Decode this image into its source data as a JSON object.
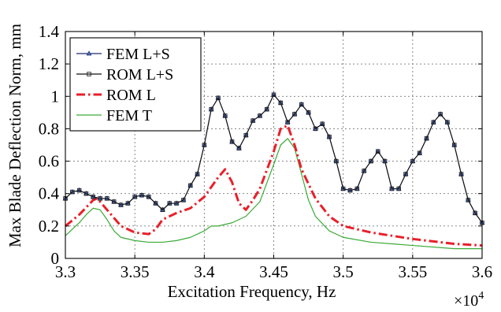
{
  "chart_data": {
    "type": "line",
    "xlabel": "Excitation Frequency, Hz",
    "ylabel": "Max Blade Deflection Norm, mm",
    "x_exponent_label": "×10",
    "x_exponent_power": "4",
    "xlim": [
      3.3,
      3.6
    ],
    "ylim": [
      0,
      1.4
    ],
    "x_ticks": [
      3.3,
      3.35,
      3.4,
      3.45,
      3.5,
      3.55,
      3.6
    ],
    "x_tick_labels": [
      "3.3",
      "3.35",
      "3.4",
      "3.45",
      "3.5",
      "3.55",
      "3.6"
    ],
    "y_ticks": [
      0,
      0.2,
      0.4,
      0.6,
      0.8,
      1,
      1.2,
      1.4
    ],
    "y_tick_labels": [
      "0",
      "0.2",
      "0.4",
      "0.6",
      "0.8",
      "1",
      "1.2",
      "1.4"
    ],
    "grid": true,
    "legend_position": "top-left",
    "series": [
      {
        "name": "FEM L+S",
        "color": "#1f2a6b",
        "style": "solid",
        "marker": "triangle",
        "x": [
          3.3,
          3.305,
          3.31,
          3.315,
          3.32,
          3.325,
          3.33,
          3.335,
          3.34,
          3.345,
          3.35,
          3.355,
          3.36,
          3.365,
          3.37,
          3.375,
          3.38,
          3.385,
          3.39,
          3.395,
          3.4,
          3.405,
          3.41,
          3.415,
          3.42,
          3.425,
          3.43,
          3.435,
          3.44,
          3.445,
          3.45,
          3.455,
          3.46,
          3.465,
          3.47,
          3.475,
          3.48,
          3.485,
          3.49,
          3.495,
          3.5,
          3.505,
          3.51,
          3.515,
          3.52,
          3.525,
          3.53,
          3.535,
          3.54,
          3.545,
          3.55,
          3.555,
          3.56,
          3.565,
          3.57,
          3.575,
          3.58,
          3.585,
          3.59,
          3.595,
          3.6
        ],
        "y": [
          0.37,
          0.41,
          0.42,
          0.4,
          0.38,
          0.37,
          0.37,
          0.35,
          0.33,
          0.34,
          0.38,
          0.39,
          0.38,
          0.34,
          0.3,
          0.34,
          0.34,
          0.36,
          0.45,
          0.52,
          0.7,
          0.92,
          0.99,
          0.88,
          0.72,
          0.68,
          0.76,
          0.85,
          0.88,
          0.92,
          1.01,
          0.96,
          0.84,
          0.89,
          0.95,
          0.9,
          0.8,
          0.83,
          0.75,
          0.6,
          0.43,
          0.42,
          0.43,
          0.54,
          0.6,
          0.66,
          0.6,
          0.43,
          0.43,
          0.52,
          0.6,
          0.65,
          0.74,
          0.84,
          0.89,
          0.84,
          0.7,
          0.52,
          0.36,
          0.28,
          0.22
        ]
      },
      {
        "name": "ROM L+S",
        "color": "#111111",
        "style": "solid",
        "marker": "square",
        "x": [
          3.3,
          3.305,
          3.31,
          3.315,
          3.32,
          3.325,
          3.33,
          3.335,
          3.34,
          3.345,
          3.35,
          3.355,
          3.36,
          3.365,
          3.37,
          3.375,
          3.38,
          3.385,
          3.39,
          3.395,
          3.4,
          3.405,
          3.41,
          3.415,
          3.42,
          3.425,
          3.43,
          3.435,
          3.44,
          3.445,
          3.45,
          3.455,
          3.46,
          3.465,
          3.47,
          3.475,
          3.48,
          3.485,
          3.49,
          3.495,
          3.5,
          3.505,
          3.51,
          3.515,
          3.52,
          3.525,
          3.53,
          3.535,
          3.54,
          3.545,
          3.55,
          3.555,
          3.56,
          3.565,
          3.57,
          3.575,
          3.58,
          3.585,
          3.59,
          3.595,
          3.6
        ],
        "y": [
          0.37,
          0.41,
          0.42,
          0.4,
          0.38,
          0.37,
          0.37,
          0.35,
          0.33,
          0.34,
          0.38,
          0.39,
          0.38,
          0.34,
          0.3,
          0.34,
          0.34,
          0.36,
          0.45,
          0.52,
          0.7,
          0.92,
          0.99,
          0.88,
          0.72,
          0.68,
          0.76,
          0.85,
          0.88,
          0.92,
          1.01,
          0.96,
          0.84,
          0.89,
          0.95,
          0.9,
          0.8,
          0.83,
          0.75,
          0.6,
          0.43,
          0.42,
          0.43,
          0.54,
          0.6,
          0.66,
          0.6,
          0.43,
          0.43,
          0.52,
          0.6,
          0.65,
          0.74,
          0.84,
          0.89,
          0.84,
          0.7,
          0.52,
          0.36,
          0.28,
          0.22
        ]
      },
      {
        "name": "ROM L",
        "color": "#e8202a",
        "style": "dashdot",
        "marker": "none",
        "x": [
          3.3,
          3.31,
          3.32,
          3.323,
          3.33,
          3.34,
          3.35,
          3.36,
          3.365,
          3.37,
          3.38,
          3.39,
          3.4,
          3.41,
          3.415,
          3.42,
          3.425,
          3.43,
          3.435,
          3.44,
          3.45,
          3.455,
          3.46,
          3.465,
          3.47,
          3.475,
          3.48,
          3.49,
          3.5,
          3.52,
          3.55,
          3.58,
          3.6
        ],
        "y": [
          0.2,
          0.27,
          0.36,
          0.37,
          0.3,
          0.2,
          0.16,
          0.15,
          0.18,
          0.24,
          0.28,
          0.31,
          0.38,
          0.5,
          0.55,
          0.47,
          0.34,
          0.3,
          0.36,
          0.43,
          0.66,
          0.8,
          0.82,
          0.7,
          0.55,
          0.46,
          0.37,
          0.26,
          0.2,
          0.16,
          0.12,
          0.09,
          0.08
        ]
      },
      {
        "name": "FEM T",
        "color": "#3aaa35",
        "style": "solid",
        "marker": "none",
        "x": [
          3.3,
          3.31,
          3.315,
          3.32,
          3.325,
          3.33,
          3.335,
          3.34,
          3.35,
          3.36,
          3.37,
          3.38,
          3.39,
          3.4,
          3.405,
          3.41,
          3.42,
          3.43,
          3.44,
          3.45,
          3.455,
          3.46,
          3.465,
          3.47,
          3.475,
          3.48,
          3.49,
          3.5,
          3.52,
          3.55,
          3.58,
          3.6
        ],
        "y": [
          0.14,
          0.22,
          0.27,
          0.31,
          0.3,
          0.24,
          0.17,
          0.13,
          0.11,
          0.1,
          0.1,
          0.11,
          0.13,
          0.17,
          0.2,
          0.2,
          0.22,
          0.26,
          0.35,
          0.58,
          0.7,
          0.74,
          0.68,
          0.52,
          0.36,
          0.26,
          0.17,
          0.13,
          0.1,
          0.08,
          0.06,
          0.06
        ]
      }
    ]
  }
}
